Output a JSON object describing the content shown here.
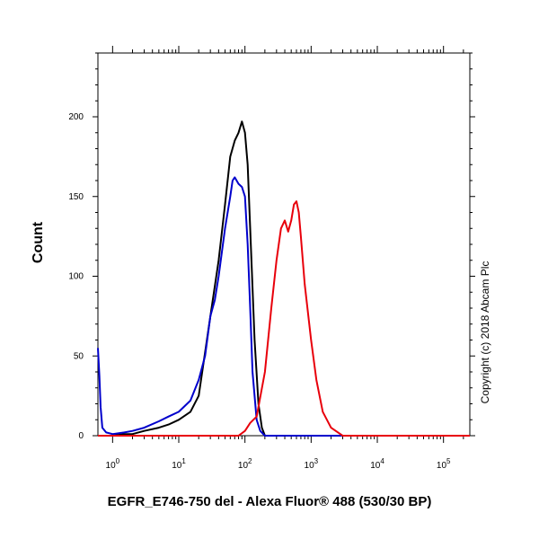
{
  "chart_data": {
    "type": "line",
    "xlabel": "EGFR_E746-750 del - Alexa Fluor® 488 (530/30 BP)",
    "ylabel": "Count",
    "x_scale": "log",
    "xlim": [
      0.6,
      250000
    ],
    "ylim": [
      0,
      240
    ],
    "x_ticks": [
      {
        "base": "10",
        "exp": "0",
        "value": 1
      },
      {
        "base": "10",
        "exp": "1",
        "value": 10
      },
      {
        "base": "10",
        "exp": "2",
        "value": 100
      },
      {
        "base": "10",
        "exp": "3",
        "value": 1000
      },
      {
        "base": "10",
        "exp": "4",
        "value": 10000
      },
      {
        "base": "10",
        "exp": "5",
        "value": 100000
      }
    ],
    "y_ticks": [
      {
        "label": "0",
        "value": 0
      },
      {
        "label": "50",
        "value": 50
      },
      {
        "label": "100",
        "value": 100
      },
      {
        "label": "150",
        "value": 150
      },
      {
        "label": "200",
        "value": 200
      }
    ],
    "series": [
      {
        "color": "#000000",
        "x": [
          0.6,
          0.63,
          0.7,
          0.8,
          1,
          1.5,
          2,
          3,
          5,
          7,
          10,
          15,
          20,
          30,
          40,
          50,
          60,
          70,
          80,
          90,
          100,
          110,
          120,
          140,
          160,
          180,
          200,
          250000
        ],
        "y": [
          0,
          0,
          0,
          0,
          0,
          1,
          1,
          3,
          5,
          7,
          10,
          15,
          25,
          75,
          110,
          145,
          175,
          185,
          190,
          197,
          190,
          170,
          130,
          60,
          20,
          5,
          0,
          0
        ]
      },
      {
        "color": "#0000cc",
        "x": [
          0.6,
          0.63,
          0.66,
          0.7,
          0.8,
          1,
          1.5,
          2,
          3,
          5,
          7,
          10,
          15,
          20,
          25,
          30,
          35,
          40,
          50,
          60,
          65,
          70,
          80,
          90,
          100,
          110,
          120,
          130,
          150,
          170,
          200,
          250000
        ],
        "y": [
          55,
          38,
          18,
          5,
          2,
          1,
          2,
          3,
          5,
          9,
          12,
          15,
          22,
          35,
          50,
          75,
          85,
          100,
          130,
          150,
          160,
          162,
          158,
          156,
          150,
          120,
          80,
          40,
          10,
          3,
          0,
          0
        ]
      },
      {
        "color": "#e8000b",
        "x": [
          0.6,
          80,
          100,
          120,
          150,
          200,
          250,
          300,
          350,
          400,
          450,
          500,
          550,
          600,
          650,
          700,
          800,
          1000,
          1200,
          1500,
          2000,
          3000,
          4000,
          250000
        ],
        "y": [
          0,
          0,
          3,
          8,
          12,
          40,
          80,
          110,
          130,
          135,
          128,
          135,
          145,
          147,
          140,
          125,
          95,
          60,
          35,
          15,
          5,
          0,
          0,
          0
        ]
      }
    ]
  },
  "copyright": "Copyright (c) 2018 Abcam Plc"
}
